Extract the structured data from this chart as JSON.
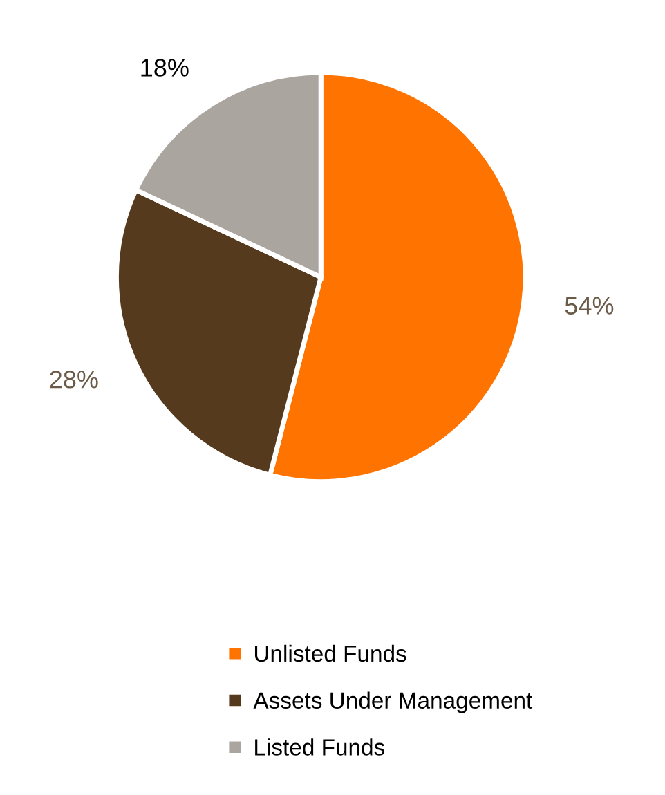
{
  "chart_data": {
    "type": "pie",
    "categories": [
      "Unlisted Funds",
      "Assets Under Management",
      "Listed Funds"
    ],
    "values": [
      54,
      28,
      18
    ],
    "colors": [
      "#ff7300",
      "#553a1e",
      "#aba59f"
    ],
    "value_labels": [
      "54%",
      "28%",
      "18%"
    ],
    "legend": "bottom"
  }
}
